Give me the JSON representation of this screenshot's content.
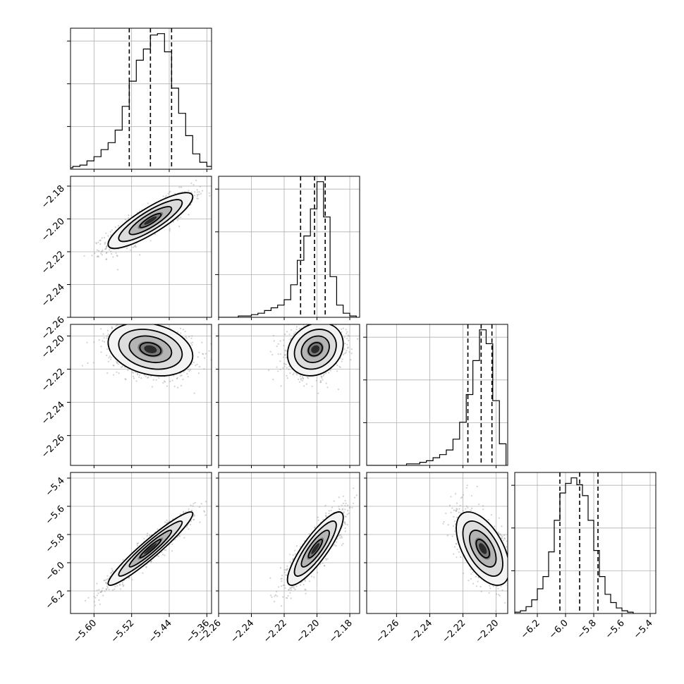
{
  "chart_data": {
    "type": "corner",
    "title": "",
    "parameters": [
      {
        "name": "",
        "range": [
          -5.65,
          -5.35
        ],
        "ticks": [
          -5.6,
          -5.52,
          -5.44,
          -5.36
        ],
        "tick_labels": [
          "−5.60",
          "−5.52",
          "−5.44",
          "−5.36"
        ],
        "mean": -5.48,
        "sd": 0.045,
        "quantiles": [
          -5.525,
          -5.48,
          -5.435
        ]
      },
      {
        "name": "",
        "range": [
          -2.26,
          -2.174
        ],
        "ticks": [
          -2.26,
          -2.24,
          -2.22,
          -2.2,
          -2.18
        ],
        "tick_labels": [
          "−2.26",
          "−2.24",
          "−2.22",
          "−2.20",
          "−2.18"
        ],
        "y_ticks": [
          -2.26,
          -2.24,
          -2.22,
          -2.2,
          -2.18
        ],
        "y_tick_labels": [
          "−2.26",
          "−2.24",
          "−2.22",
          "−2.20",
          "−2.18"
        ],
        "mean": -2.201,
        "sd": 0.0085,
        "quantiles": [
          -2.21,
          -2.2015,
          -2.195
        ]
      },
      {
        "name": "",
        "range": [
          -2.278,
          -2.193
        ],
        "ticks": [
          -2.26,
          -2.24,
          -2.22,
          -2.2
        ],
        "tick_labels": [
          "−2.26",
          "−2.24",
          "−2.22",
          "−2.20"
        ],
        "y_ticks": [
          -2.26,
          -2.24,
          -2.22,
          -2.2
        ],
        "y_tick_labels": [
          "−2.26",
          "−2.24",
          "−2.22",
          "−2.20"
        ],
        "mean": -2.208,
        "sd": 0.008,
        "quantiles": [
          -2.217,
          -2.209,
          -2.2025
        ]
      },
      {
        "name": "",
        "range": [
          -6.36,
          -5.36
        ],
        "ticks": [
          -6.2,
          -6.0,
          -5.8,
          -5.6,
          -5.4
        ],
        "tick_labels": [
          "−6.2",
          "−6.0",
          "−5.8",
          "−5.6",
          "−5.4"
        ],
        "y_ticks": [
          -6.2,
          -6.0,
          -5.8,
          -5.6,
          -5.4
        ],
        "y_tick_labels": [
          "−6.2",
          "−6.0",
          "−5.8",
          "−5.6",
          "−5.4"
        ],
        "mean": -5.9,
        "sd": 0.13,
        "quantiles": [
          -6.04,
          -5.9,
          -5.77
        ]
      }
    ],
    "histograms": [
      {
        "param": 0,
        "bin_edges": [
          -5.66,
          -5.645,
          -5.63,
          -5.615,
          -5.6,
          -5.585,
          -5.57,
          -5.555,
          -5.54,
          -5.525,
          -5.51,
          -5.495,
          -5.48,
          -5.465,
          -5.45,
          -5.435,
          -5.42,
          -5.405,
          -5.39,
          -5.375,
          -5.36,
          -5.345
        ],
        "counts": [
          1,
          2,
          3,
          6,
          9,
          14,
          19,
          28,
          45,
          63,
          78,
          86,
          96,
          97,
          84,
          58,
          40,
          24,
          11,
          5,
          2
        ]
      },
      {
        "param": 1,
        "bin_edges": [
          -2.26,
          -2.256,
          -2.252,
          -2.248,
          -2.244,
          -2.24,
          -2.236,
          -2.232,
          -2.228,
          -2.224,
          -2.22,
          -2.216,
          -2.212,
          -2.208,
          -2.204,
          -2.2,
          -2.196,
          -2.192,
          -2.188,
          -2.184,
          -2.18,
          -2.176
        ],
        "counts": [
          0,
          0,
          0,
          1,
          1,
          2,
          3,
          5,
          7,
          9,
          13,
          24,
          42,
          60,
          80,
          100,
          74,
          30,
          9,
          3,
          1
        ]
      },
      {
        "param": 2,
        "bin_edges": [
          -2.278,
          -2.274,
          -2.27,
          -2.266,
          -2.262,
          -2.258,
          -2.254,
          -2.25,
          -2.246,
          -2.242,
          -2.238,
          -2.234,
          -2.23,
          -2.226,
          -2.222,
          -2.218,
          -2.214,
          -2.21,
          -2.206,
          -2.202,
          -2.198,
          -2.194
        ],
        "counts": [
          0,
          0,
          0,
          0,
          0,
          0,
          1,
          1,
          2,
          3,
          5,
          7,
          10,
          17,
          28,
          46,
          68,
          88,
          79,
          42,
          14
        ]
      },
      {
        "param": 3,
        "bin_edges": [
          -6.36,
          -6.32,
          -6.28,
          -6.24,
          -6.2,
          -6.16,
          -6.12,
          -6.08,
          -6.04,
          -6.0,
          -5.96,
          -5.92,
          -5.88,
          -5.84,
          -5.8,
          -5.76,
          -5.72,
          -5.68,
          -5.64,
          -5.6,
          -5.56,
          -5.52
        ],
        "counts": [
          1,
          2,
          5,
          10,
          18,
          27,
          45,
          68,
          88,
          95,
          99,
          94,
          86,
          68,
          46,
          27,
          14,
          8,
          4,
          2,
          1
        ]
      }
    ],
    "pairs": [
      {
        "x_param": 0,
        "y_param": 1,
        "corr": 0.85
      },
      {
        "x_param": 0,
        "y_param": 2,
        "corr": -0.25
      },
      {
        "x_param": 1,
        "y_param": 2,
        "corr": 0.2
      },
      {
        "x_param": 0,
        "y_param": 3,
        "corr": 0.95
      },
      {
        "x_param": 1,
        "y_param": 3,
        "corr": 0.85
      },
      {
        "x_param": 2,
        "y_param": 3,
        "corr": -0.55
      }
    ],
    "contour_levels_sigma": [
      0.5,
      1.0,
      1.5,
      2.0
    ],
    "grid": true,
    "colors": {
      "line": "#000000",
      "grid": "#b0b0b0",
      "points": "#9a9a9a",
      "background": "#ffffff"
    }
  }
}
